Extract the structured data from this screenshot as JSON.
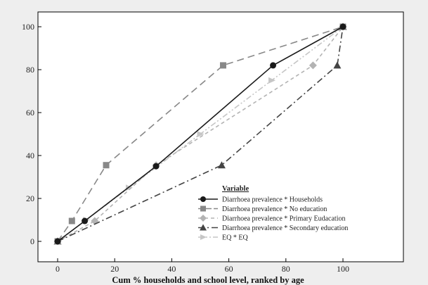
{
  "chart_data": {
    "type": "line",
    "title": "",
    "xlabel": "Cum % households and school level, ranked by age",
    "ylabel": "",
    "xlim": [
      0,
      100
    ],
    "ylim": [
      0,
      100
    ],
    "x_ticks": [
      "0",
      "20",
      "40",
      "60",
      "80",
      "100"
    ],
    "y_ticks": [
      "0",
      "20",
      "40",
      "60",
      "80",
      "100"
    ],
    "grid": false,
    "legend": {
      "title": "Variable",
      "placement": "bottom-right",
      "entries": [
        "Diarrhoea prevalence * Households",
        "Diarrhoea prevalence * No education",
        "Diarrhoea prevalence * Primary Eudacation",
        "Diarrhoea prevalence * Secondary education",
        "EQ * EQ"
      ]
    },
    "series": [
      {
        "name": "Diarrhoea prevalence * Households",
        "color": "#1a1a1a",
        "marker": "circle",
        "dash": "none",
        "points": [
          [
            0,
            0
          ],
          [
            9.5,
            9.5
          ],
          [
            34.5,
            35
          ],
          [
            75.5,
            82
          ],
          [
            100,
            100
          ]
        ]
      },
      {
        "name": "Diarrhoea prevalence * No education",
        "color": "#888888",
        "marker": "square",
        "dash": "long",
        "points": [
          [
            0,
            0
          ],
          [
            5,
            9.5
          ],
          [
            17,
            35.5
          ],
          [
            58,
            82
          ],
          [
            100,
            100
          ]
        ]
      },
      {
        "name": "Diarrhoea prevalence * Primary Eudacation",
        "color": "#b3b3b3",
        "marker": "diamond",
        "dash": "short",
        "points": [
          [
            0,
            0
          ],
          [
            13,
            9.5
          ],
          [
            34.5,
            35.5
          ],
          [
            89.5,
            82
          ],
          [
            100,
            100
          ]
        ]
      },
      {
        "name": "Diarrhoea prevalence * Secondary education",
        "color": "#444444",
        "marker": "triangle",
        "dash": "dashdot",
        "points": [
          [
            0,
            0
          ],
          [
            57.5,
            35.5
          ],
          [
            98,
            82
          ],
          [
            100,
            100
          ]
        ]
      },
      {
        "name": "EQ * EQ",
        "color": "#c6c6c6",
        "marker": "arrow",
        "dash": "dashdotdot",
        "points": [
          [
            0,
            0
          ],
          [
            10,
            10
          ],
          [
            25,
            25
          ],
          [
            50,
            50
          ],
          [
            75,
            75
          ],
          [
            100,
            100
          ]
        ]
      }
    ]
  }
}
